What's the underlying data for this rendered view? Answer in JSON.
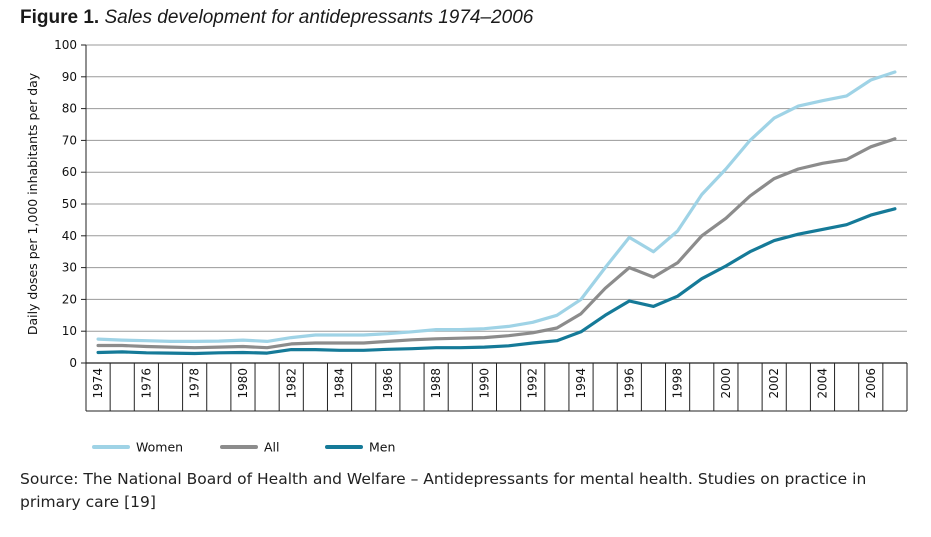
{
  "figure": {
    "label": "Figure 1.",
    "title": "Sales development for antidepressants 1974–2006"
  },
  "source_text": "Source: The National Board of Health and Welfare – Antidepressants for mental health. Studies on practice in primary care [19]",
  "chart_data": {
    "type": "line",
    "ylabel": "Daily doses per 1,000 inhabitants per day",
    "xlabel": "",
    "ylim": [
      0,
      100
    ],
    "yticks": [
      0,
      10,
      20,
      30,
      40,
      50,
      60,
      70,
      80,
      90,
      100
    ],
    "xlim": [
      1973.5,
      2007.5
    ],
    "xtick_labels": [
      "1974",
      "1976",
      "1978",
      "1980",
      "1982",
      "1984",
      "1986",
      "1988",
      "1990",
      "1992",
      "1994",
      "1996",
      "1998",
      "2000",
      "2002",
      "2004",
      "2006"
    ],
    "grid": "horizontal",
    "legend_position": "bottom",
    "x": [
      1974,
      1975,
      1976,
      1977,
      1978,
      1979,
      1980,
      1981,
      1982,
      1983,
      1984,
      1985,
      1986,
      1987,
      1988,
      1989,
      1990,
      1991,
      1992,
      1993,
      1994,
      1995,
      1996,
      1997,
      1998,
      1999,
      2000,
      2001,
      2002,
      2003,
      2004,
      2005,
      2006,
      2007
    ],
    "series": [
      {
        "name": "Women",
        "color": "#9fd3e6",
        "values": [
          7.5,
          7.2,
          7.0,
          6.8,
          6.8,
          6.9,
          7.2,
          6.8,
          8.0,
          8.8,
          8.8,
          8.8,
          9.2,
          9.8,
          10.5,
          10.5,
          10.8,
          11.5,
          12.8,
          15.0,
          20.0,
          30.0,
          39.5,
          35.0,
          41.5,
          53.0,
          61.0,
          70.0,
          77.0,
          80.8,
          82.5,
          84.0,
          89.0,
          91.5
        ]
      },
      {
        "name": "All",
        "color": "#8c8c8c",
        "values": [
          5.5,
          5.5,
          5.2,
          5.0,
          4.8,
          5.0,
          5.2,
          4.8,
          6.0,
          6.3,
          6.3,
          6.3,
          6.8,
          7.3,
          7.6,
          7.8,
          8.0,
          8.6,
          9.5,
          11.0,
          15.5,
          23.5,
          30.0,
          27.0,
          31.5,
          40.0,
          45.5,
          52.5,
          58.0,
          61.0,
          62.8,
          64.0,
          68.0,
          70.5
        ]
      },
      {
        "name": "Men",
        "color": "#157a98",
        "values": [
          3.3,
          3.5,
          3.2,
          3.1,
          3.0,
          3.2,
          3.3,
          3.1,
          4.2,
          4.2,
          4.0,
          4.0,
          4.3,
          4.5,
          4.8,
          4.8,
          5.0,
          5.4,
          6.3,
          7.0,
          9.8,
          15.0,
          19.5,
          17.8,
          21.0,
          26.5,
          30.5,
          35.0,
          38.5,
          40.5,
          42.0,
          43.5,
          46.5,
          48.5
        ]
      }
    ]
  }
}
